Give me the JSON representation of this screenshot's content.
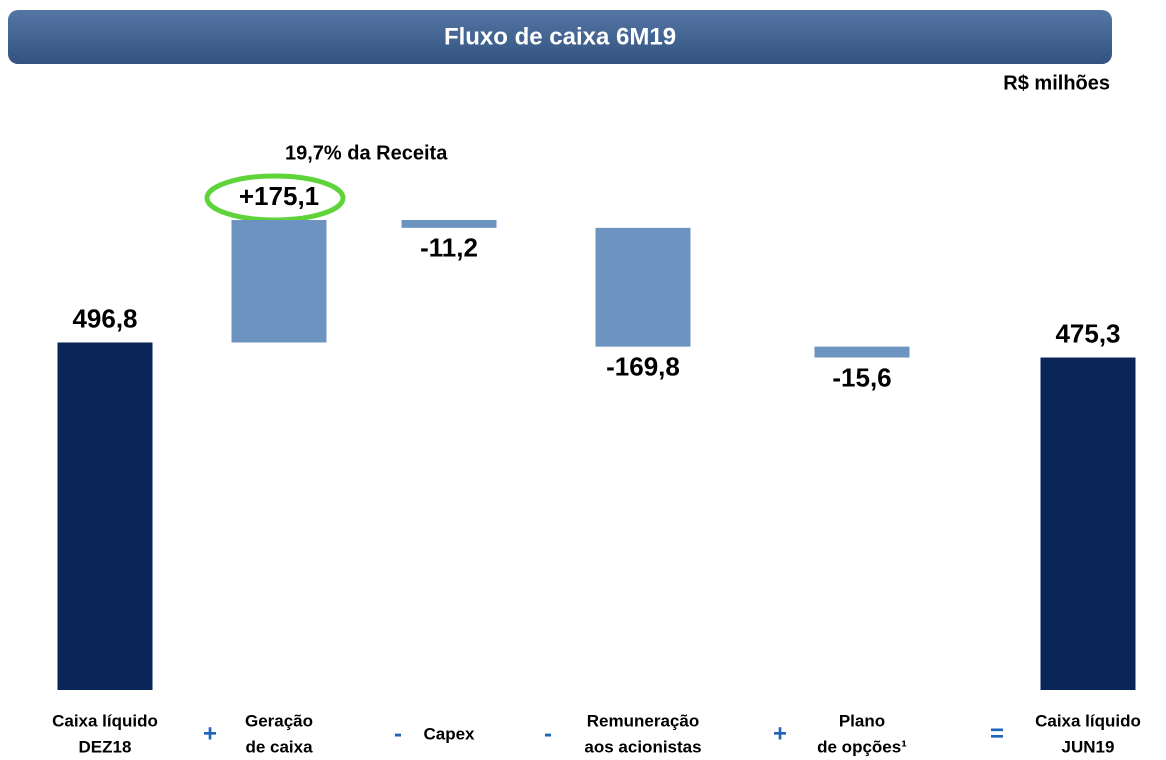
{
  "chart_data": {
    "type": "waterfall",
    "title": "Fluxo de caixa 6M19",
    "unit": "R$ milhões",
    "annotation": "19,7% da Receita",
    "categories": [
      [
        "Caixa líquido",
        "DEZ18"
      ],
      [
        "Geração",
        "de caixa"
      ],
      [
        "Capex"
      ],
      [
        "Remuneração",
        "aos acionistas"
      ],
      [
        "Plano",
        "de opções¹"
      ],
      [
        "Caixa líquido",
        "JUN19"
      ]
    ],
    "operators": [
      "+",
      "-",
      "-",
      "+",
      "="
    ],
    "values": [
      496.8,
      175.1,
      -11.2,
      -169.8,
      -15.6,
      475.3
    ],
    "value_labels": [
      "496,8",
      "+175,1",
      "-11,2",
      "-169,8",
      "-15,6",
      "475,3"
    ],
    "colors": [
      "#0a2558",
      "#6d93c1",
      "#6d93c1",
      "#6d93c1",
      "#6d93c1",
      "#0a2558"
    ]
  }
}
